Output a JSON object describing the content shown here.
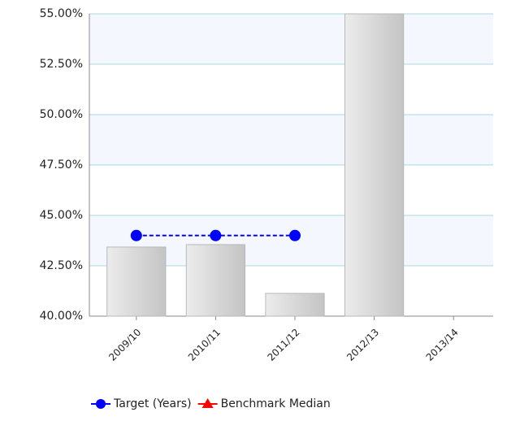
{
  "chart_data": {
    "type": "bar",
    "categories": [
      "2009/10",
      "2010/11",
      "2011/12",
      "2012/13",
      "2013/14"
    ],
    "values": [
      43.43,
      43.55,
      41.13,
      55,
      null
    ],
    "color": "#d0d0d0",
    "series": [
      {
        "name": "Target (Years)",
        "color": "#0000ff",
        "marker": "circle",
        "line_style": "dashed",
        "values": [
          44.0,
          44.0,
          44.0,
          null,
          null
        ]
      },
      {
        "name": "Benchmark Median",
        "color": "#ff0000",
        "marker": "triangle",
        "values": [
          null,
          null,
          null,
          null,
          null
        ]
      }
    ],
    "ylim": [
      40,
      55
    ],
    "yticks": [
      {
        "value": 40,
        "label": "40.00%"
      },
      {
        "value": 42.5,
        "label": "42.50%"
      },
      {
        "value": 45,
        "label": "45.00%"
      },
      {
        "value": 47.5,
        "label": "47.50%"
      },
      {
        "value": 50,
        "label": "50.00%"
      },
      {
        "value": 52.5,
        "label": "52.50%"
      },
      {
        "value": 55,
        "label": "55.00%"
      }
    ],
    "grid": true,
    "legend": "bottom"
  }
}
